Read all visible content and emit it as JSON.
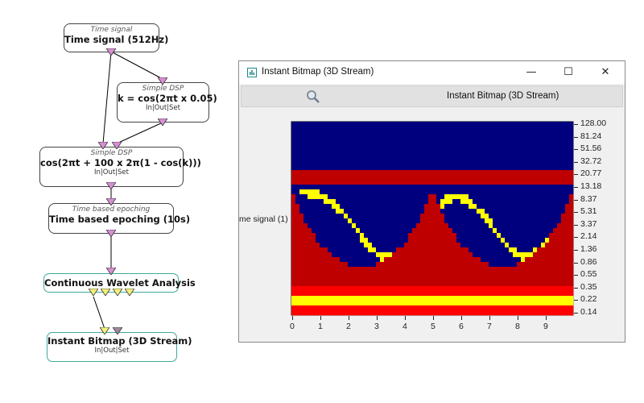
{
  "graph": {
    "nodes": [
      {
        "id": "time-signal",
        "sub": "Time signal",
        "main": "Time signal (512Hz)",
        "io": ""
      },
      {
        "id": "simple-dsp-1",
        "sub": "Simple DSP",
        "main": "k = cos(2πt x 0.05)",
        "io": "In|Out|Set"
      },
      {
        "id": "simple-dsp-2",
        "sub": "Simple DSP",
        "main": "cos(2πt + 100 x 2π(1 - cos(k)))",
        "io": "In|Out|Set"
      },
      {
        "id": "epoching",
        "sub": "Time based epoching",
        "main": "Time based epoching (10s)",
        "io": ""
      },
      {
        "id": "cwa",
        "sub": "",
        "main": "Continuous Wavelet Analysis",
        "io": ""
      },
      {
        "id": "bitmap",
        "sub": "",
        "main": "Instant Bitmap (3D Stream)",
        "io": "In|Out|Set"
      }
    ],
    "colors": {
      "pin_pink": "#d98fd4",
      "pin_yellow": "#f2f07a",
      "pin_grey": "#a08aa0",
      "teal": "#3fa99b"
    }
  },
  "window": {
    "title": "Instant Bitmap (3D Stream)",
    "toolbar_label": "Instant Bitmap (3D Stream)",
    "icons": {
      "app": "chart-icon",
      "zoom": "magnifier-icon",
      "minimize": "minimize-icon",
      "maximize": "maximize-icon",
      "close": "close-icon"
    },
    "buttons": {
      "minimize": "—",
      "maximize": "☐",
      "close": "✕"
    },
    "channel_label": "me signal (1)"
  },
  "chart_data": {
    "type": "heatmap",
    "x_ticks": [
      "0",
      "1",
      "2",
      "3",
      "4",
      "5",
      "6",
      "7",
      "8",
      "9"
    ],
    "y_ticks": [
      "128.00",
      "81.24",
      "51.56",
      "32.72",
      "20.77",
      "13.18",
      "8.37",
      "5.31",
      "3.37",
      "2.14",
      "1.36",
      "0.86",
      "0.55",
      "0.35",
      "0.22",
      "0.14"
    ],
    "xlim": [
      0,
      10
    ],
    "colormap": [
      "#00007f",
      "#0000ff",
      "#00ffff",
      "#ffff00",
      "#ff0000",
      "#bf0000"
    ]
  }
}
